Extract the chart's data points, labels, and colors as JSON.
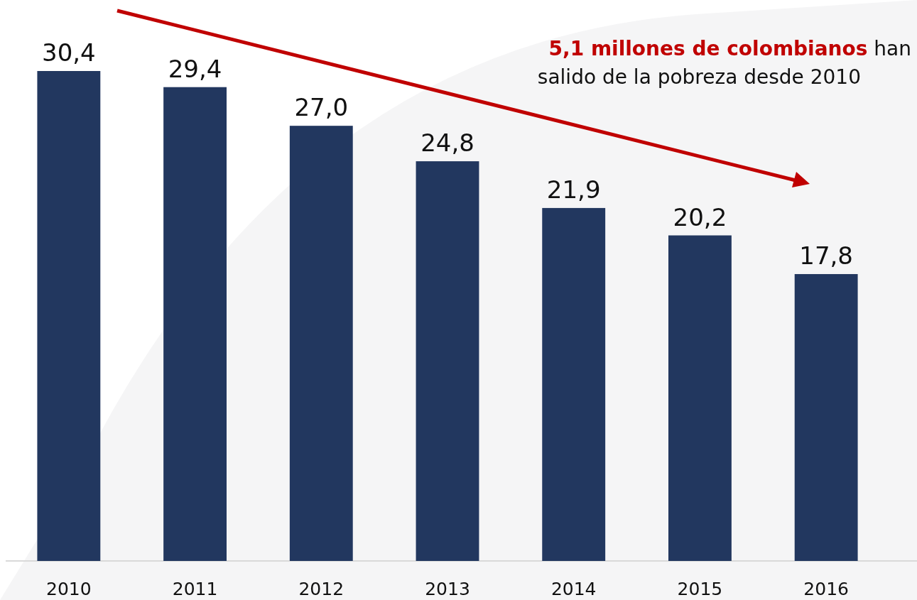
{
  "chart_data": {
    "type": "bar",
    "categories": [
      "2010",
      "2011",
      "2012",
      "2013",
      "2014",
      "2015",
      "2016"
    ],
    "values": [
      30.4,
      29.4,
      27.0,
      24.8,
      21.9,
      20.2,
      17.8
    ],
    "value_labels": [
      "30,4",
      "29,4",
      "27,0",
      "24,8",
      "21,9",
      "20,2",
      "17,8"
    ],
    "color": "#22375f",
    "annotations": [
      "5,1 millones de colombianos",
      "han salido de la pobreza desde 2010"
    ]
  }
}
